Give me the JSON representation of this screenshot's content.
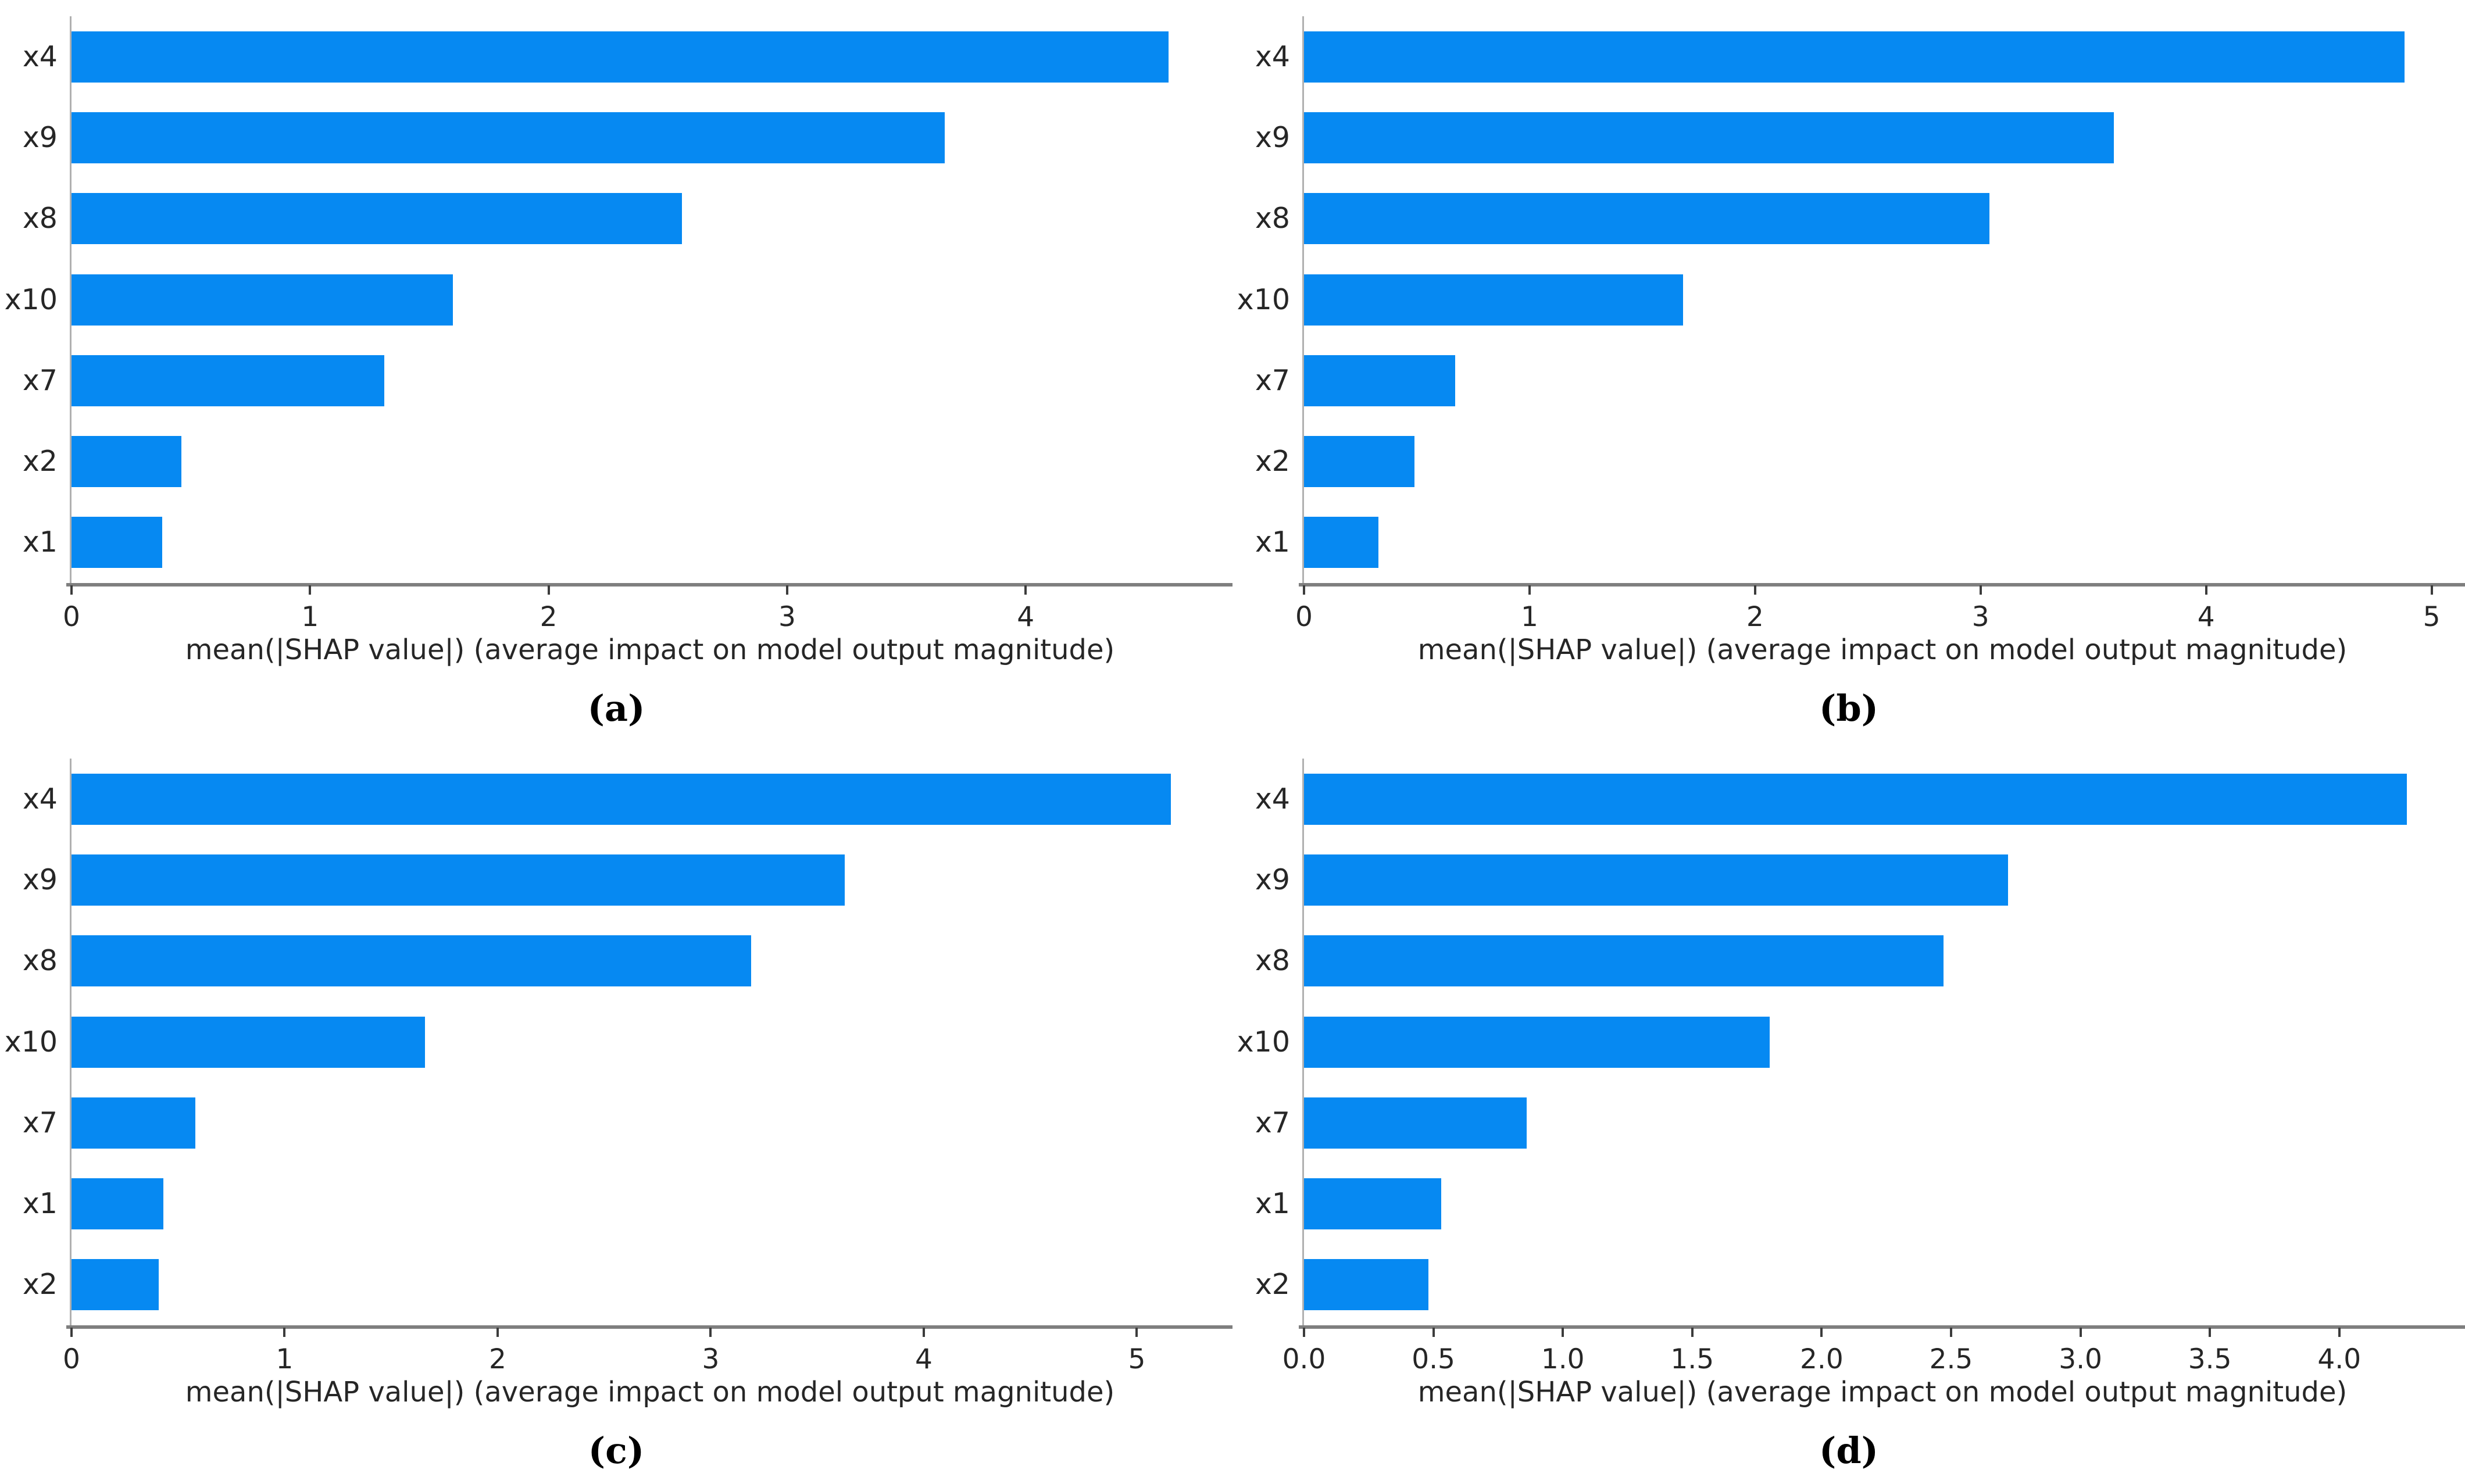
{
  "figure": {
    "background": "#ffffff",
    "bar_color": "#0689f2",
    "axis_line_color": "#7f7f7f",
    "spine_color": "#b0b0b0",
    "tick_mark_color": "#3c3c3c",
    "text_color": "#262626"
  },
  "chart_data": [
    {
      "type": "bar",
      "orientation": "horizontal",
      "panel": "a",
      "caption": "(a)",
      "title": "",
      "xlabel": "mean(|SHAP value|) (average impact on model output magnitude)",
      "ylabel": "",
      "grid": false,
      "legend": "none",
      "categories": [
        "x4",
        "x9",
        "x8",
        "x10",
        "x7",
        "x2",
        "x1"
      ],
      "values": [
        4.6,
        3.66,
        2.56,
        1.6,
        1.31,
        0.46,
        0.38
      ],
      "xticks": [
        0,
        1,
        2,
        3,
        4
      ],
      "xtick_labels": [
        "0",
        "1",
        "2",
        "3",
        "4"
      ],
      "xlim": [
        0,
        4.85
      ]
    },
    {
      "type": "bar",
      "orientation": "horizontal",
      "panel": "b",
      "caption": "(b)",
      "title": "",
      "xlabel": "mean(|SHAP value|) (average impact on model output magnitude)",
      "ylabel": "",
      "grid": false,
      "legend": "none",
      "categories": [
        "x4",
        "x9",
        "x8",
        "x10",
        "x7",
        "x2",
        "x1"
      ],
      "values": [
        4.88,
        3.59,
        3.04,
        1.68,
        0.67,
        0.49,
        0.33
      ],
      "xticks": [
        0,
        1,
        2,
        3,
        4,
        5
      ],
      "xtick_labels": [
        "0",
        "1",
        "2",
        "3",
        "4",
        "5"
      ],
      "xlim": [
        0,
        5.13
      ]
    },
    {
      "type": "bar",
      "orientation": "horizontal",
      "panel": "c",
      "caption": "(c)",
      "title": "",
      "xlabel": "mean(|SHAP value|) (average impact on model output magnitude)",
      "ylabel": "",
      "grid": false,
      "legend": "none",
      "categories": [
        "x4",
        "x9",
        "x8",
        "x10",
        "x7",
        "x1",
        "x2"
      ],
      "values": [
        5.16,
        3.63,
        3.19,
        1.66,
        0.58,
        0.43,
        0.41
      ],
      "xticks": [
        0,
        1,
        2,
        3,
        4,
        5
      ],
      "xtick_labels": [
        "0",
        "1",
        "2",
        "3",
        "4",
        "5"
      ],
      "xlim": [
        0,
        5.43
      ]
    },
    {
      "type": "bar",
      "orientation": "horizontal",
      "panel": "d",
      "caption": "(d)",
      "title": "",
      "xlabel": "mean(|SHAP value|) (average impact on model output magnitude)",
      "ylabel": "",
      "grid": false,
      "legend": "none",
      "categories": [
        "x4",
        "x9",
        "x8",
        "x10",
        "x7",
        "x1",
        "x2"
      ],
      "values": [
        4.26,
        2.72,
        2.47,
        1.8,
        0.86,
        0.53,
        0.48
      ],
      "xticks": [
        0,
        0.5,
        1,
        1.5,
        2,
        2.5,
        3,
        3.5,
        4
      ],
      "xtick_labels": [
        "0.0",
        "0.5",
        "1.0",
        "1.5",
        "2.0",
        "2.5",
        "3.0",
        "3.5",
        "4.0"
      ],
      "xlim": [
        0,
        4.47
      ]
    }
  ]
}
